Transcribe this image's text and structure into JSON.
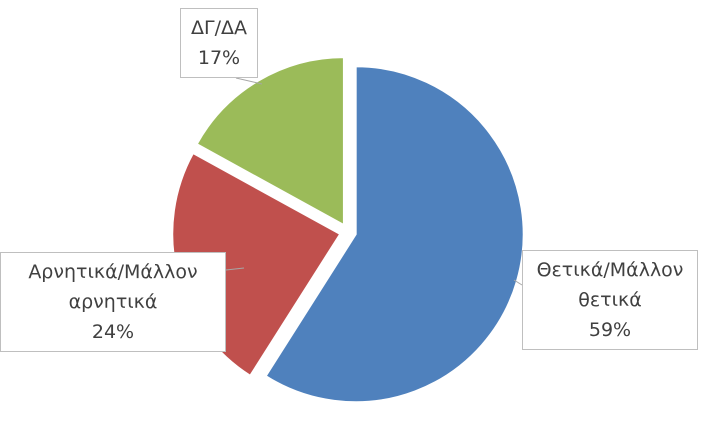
{
  "chart_data": {
    "type": "pie",
    "categories": [
      "Θετικά/Μάλλον θετικά",
      "Αρνητικά/Μάλλον αρνητικά",
      "ΔΓ/ΔΑ"
    ],
    "values": [
      59,
      24,
      17
    ],
    "value_labels": [
      "59%",
      "24%",
      "17%"
    ],
    "colors": [
      "#4f81bd",
      "#c0504d",
      "#9bbb59"
    ]
  }
}
